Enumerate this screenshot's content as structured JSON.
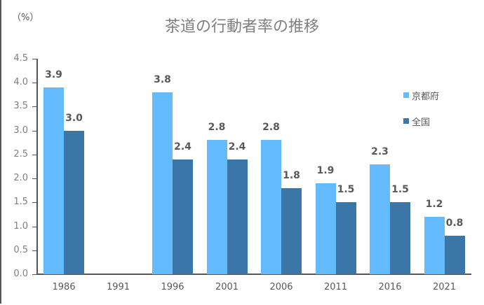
{
  "chart_data": {
    "type": "bar",
    "title": "茶道の行動者率の推移",
    "ylabel": "（%）",
    "xlabel": "",
    "ylim": [
      0,
      4.5
    ],
    "yticks": [
      "0.0",
      "0.5",
      "1.0",
      "1.5",
      "2.0",
      "2.5",
      "3.0",
      "3.5",
      "4.0",
      "4.5"
    ],
    "categories": [
      "1986",
      "1991",
      "1996",
      "2001",
      "2006",
      "2011",
      "2016",
      "2021"
    ],
    "series": [
      {
        "name": "京都府",
        "color": "#63bafd",
        "values": [
          3.9,
          null,
          3.8,
          2.8,
          2.8,
          1.9,
          2.3,
          1.2
        ]
      },
      {
        "name": "全国",
        "color": "#3b76a8",
        "values": [
          3.0,
          null,
          2.4,
          2.4,
          1.8,
          1.5,
          1.5,
          0.8
        ]
      }
    ],
    "data_labels": true,
    "grid": false,
    "legend_position": "right"
  }
}
